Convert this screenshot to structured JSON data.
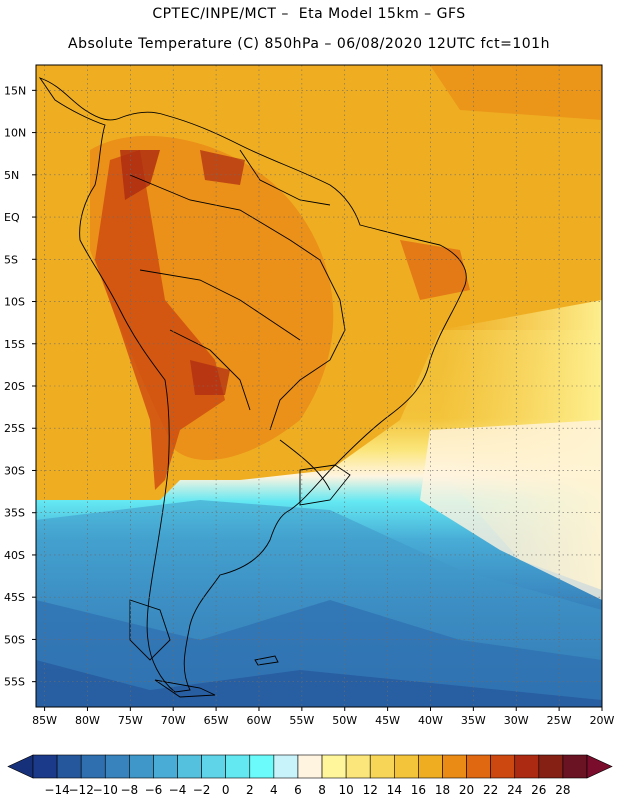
{
  "header": {
    "line1": "CPTEC/INPE/MCT –  Eta Model 15km – GFS",
    "line2": "Absolute Temperature (C) 850hPa – 06/08/2020 12UTC fct=101h"
  },
  "map": {
    "lat_labels": [
      "15N",
      "10N",
      "5N",
      "EQ",
      "5S",
      "10S",
      "15S",
      "20S",
      "25S",
      "30S",
      "35S",
      "40S",
      "45S",
      "50S",
      "55S"
    ],
    "lon_labels": [
      "85W",
      "80W",
      "75W",
      "70W",
      "65W",
      "60W",
      "55W",
      "50W",
      "45W",
      "40W",
      "35W",
      "30W",
      "25W",
      "20W"
    ],
    "lat_range": [
      18,
      -58
    ],
    "lon_range": [
      -86,
      -20
    ],
    "gridlines": true
  },
  "colorbar": {
    "labels": [
      "-14",
      "-12",
      "-10",
      "-8",
      "-6",
      "-4",
      "-2",
      "0",
      "2",
      "4",
      "6",
      "8",
      "10",
      "12",
      "14",
      "16",
      "18",
      "20",
      "22",
      "24",
      "26",
      "28"
    ],
    "colors": [
      "#1c3a8a",
      "#25579c",
      "#2f6fb0",
      "#3883bd",
      "#3f97c9",
      "#48acd6",
      "#54c1df",
      "#5fd3e8",
      "#63e8f2",
      "#6cfbfb",
      "#c8f3fb",
      "#fff4e0",
      "#fff59a",
      "#fbe67c",
      "#f7d657",
      "#f3c33a",
      "#efae22",
      "#ea8b16",
      "#e06811",
      "#cd4810",
      "#ad2a12",
      "#852014",
      "#6a1322"
    ],
    "underflow_color": "#17307a",
    "overflow_color": "#7a0c2c"
  }
}
